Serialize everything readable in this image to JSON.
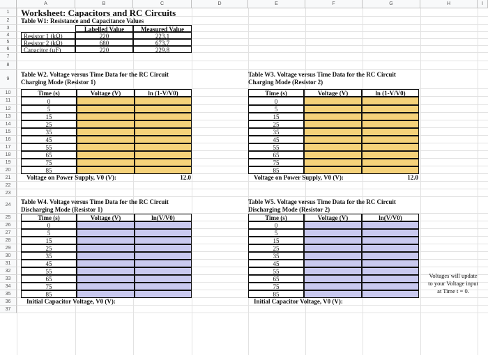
{
  "columns": [
    "A",
    "B",
    "C",
    "D",
    "E",
    "F",
    "G",
    "H",
    "I"
  ],
  "rows": [
    "1",
    "2",
    "3",
    "4",
    "5",
    "6",
    "7",
    "8",
    "9",
    "10",
    "11",
    "12",
    "13",
    "14",
    "15",
    "16",
    "17",
    "18",
    "19",
    "20",
    "21",
    "22",
    "23",
    "24",
    "25",
    "26",
    "27",
    "28",
    "29",
    "30",
    "31",
    "32",
    "33",
    "34",
    "35",
    "36",
    "37"
  ],
  "title": "Worksheet: Capacitors and RC Circuits",
  "w1": {
    "caption": "Table W1: Resistance and Capacitance Values",
    "headers": [
      "Labelled Value",
      "Measured Value"
    ],
    "rows": [
      {
        "label": "Resistor 1 (kΩ)",
        "labelled": "220",
        "measured": "223.1"
      },
      {
        "label": "Resistor 2 (kΩ)",
        "labelled": "680",
        "measured": "673.7"
      },
      {
        "label": "Capacitor (µF)",
        "labelled": "220",
        "measured": "229.8"
      }
    ]
  },
  "times": [
    "0",
    "5",
    "15",
    "25",
    "35",
    "45",
    "55",
    "65",
    "75",
    "85"
  ],
  "w2": {
    "caption": "Table W2. Voltage versus Time Data for the RC Circuit Charging Mode (Resistor 1)",
    "headers": [
      "Time (s)",
      "Voltage (V)",
      "ln (1-V/V0)"
    ],
    "footer_label": "Voltage on Power Supply, V0 (V):",
    "footer_value": "12.0"
  },
  "w3": {
    "caption": "Table W3. Voltage versus Time Data for the RC Circuit Charging Mode (Resistor 2)",
    "headers": [
      "Time (s)",
      "Voltage (V)",
      "ln (1-V/V0)"
    ],
    "footer_label": "Voltage on Power Supply, V0 (V):",
    "footer_value": "12.0"
  },
  "w4": {
    "caption": "Table W4. Voltage versus Time Data for the RC Circuit Discharging Mode (Resistor 1)",
    "headers": [
      "Time (s)",
      "Voltage (V)",
      "ln(V/V0)"
    ],
    "footer_label": "Initial Capacitor Voltage, V0 (V):"
  },
  "w5": {
    "caption": "Table W5. Voltage versus Time Data for the RC Circuit Discharging Mode (Resistor 2)",
    "headers": [
      "Time (s)",
      "Voltage (V)",
      "ln(V/V0)"
    ],
    "footer_label": "Initial Capacitor Voltage, V0 (V):"
  },
  "note": "Voltages will update to your Voltage input at Time t = 0.",
  "colors": {
    "charging_fill": "#f5d27a",
    "discharging_fill": "#c9c9ef"
  }
}
